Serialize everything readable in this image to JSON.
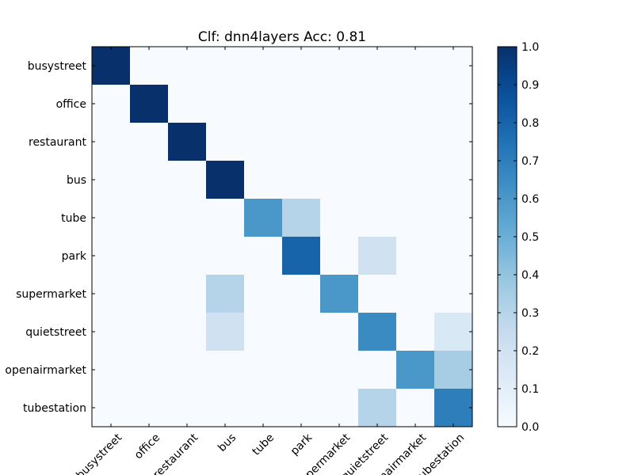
{
  "chart_data": {
    "type": "heatmap",
    "title": "Clf: dnn4layers Acc: 0.81",
    "row_labels": [
      "busystreet",
      "office",
      "restaurant",
      "bus",
      "tube",
      "park",
      "supermarket",
      "quietstreet",
      "openairmarket",
      "tubestation"
    ],
    "col_labels": [
      "busystreet",
      "office",
      "restaurant",
      "bus",
      "tube",
      "park",
      "supermarket",
      "quietstreet",
      "openairmarket",
      "tubestation"
    ],
    "values": [
      [
        1.0,
        0,
        0,
        0,
        0,
        0,
        0,
        0,
        0,
        0
      ],
      [
        0,
        1.0,
        0,
        0,
        0,
        0,
        0,
        0,
        0,
        0
      ],
      [
        0,
        0,
        1.0,
        0,
        0,
        0,
        0,
        0,
        0,
        0
      ],
      [
        0,
        0,
        0,
        1.0,
        0,
        0,
        0,
        0,
        0,
        0
      ],
      [
        0,
        0,
        0,
        0,
        0.6,
        0.3,
        0,
        0,
        0,
        0
      ],
      [
        0,
        0,
        0,
        0,
        0,
        0.8,
        0,
        0.2,
        0,
        0
      ],
      [
        0,
        0,
        0,
        0.3,
        0,
        0,
        0.6,
        0,
        0,
        0
      ],
      [
        0,
        0,
        0,
        0.2,
        0,
        0,
        0,
        0.65,
        0,
        0.15
      ],
      [
        0,
        0,
        0,
        0,
        0,
        0,
        0,
        0,
        0.6,
        0.35
      ],
      [
        0,
        0,
        0,
        0,
        0,
        0,
        0,
        0.3,
        0,
        0.7
      ]
    ],
    "colormap": "Blues",
    "colorbar": {
      "range": [
        0.0,
        1.0
      ],
      "ticks": [
        "0.0",
        "0.1",
        "0.2",
        "0.3",
        "0.4",
        "0.5",
        "0.6",
        "0.7",
        "0.8",
        "0.9",
        "1.0"
      ]
    }
  }
}
